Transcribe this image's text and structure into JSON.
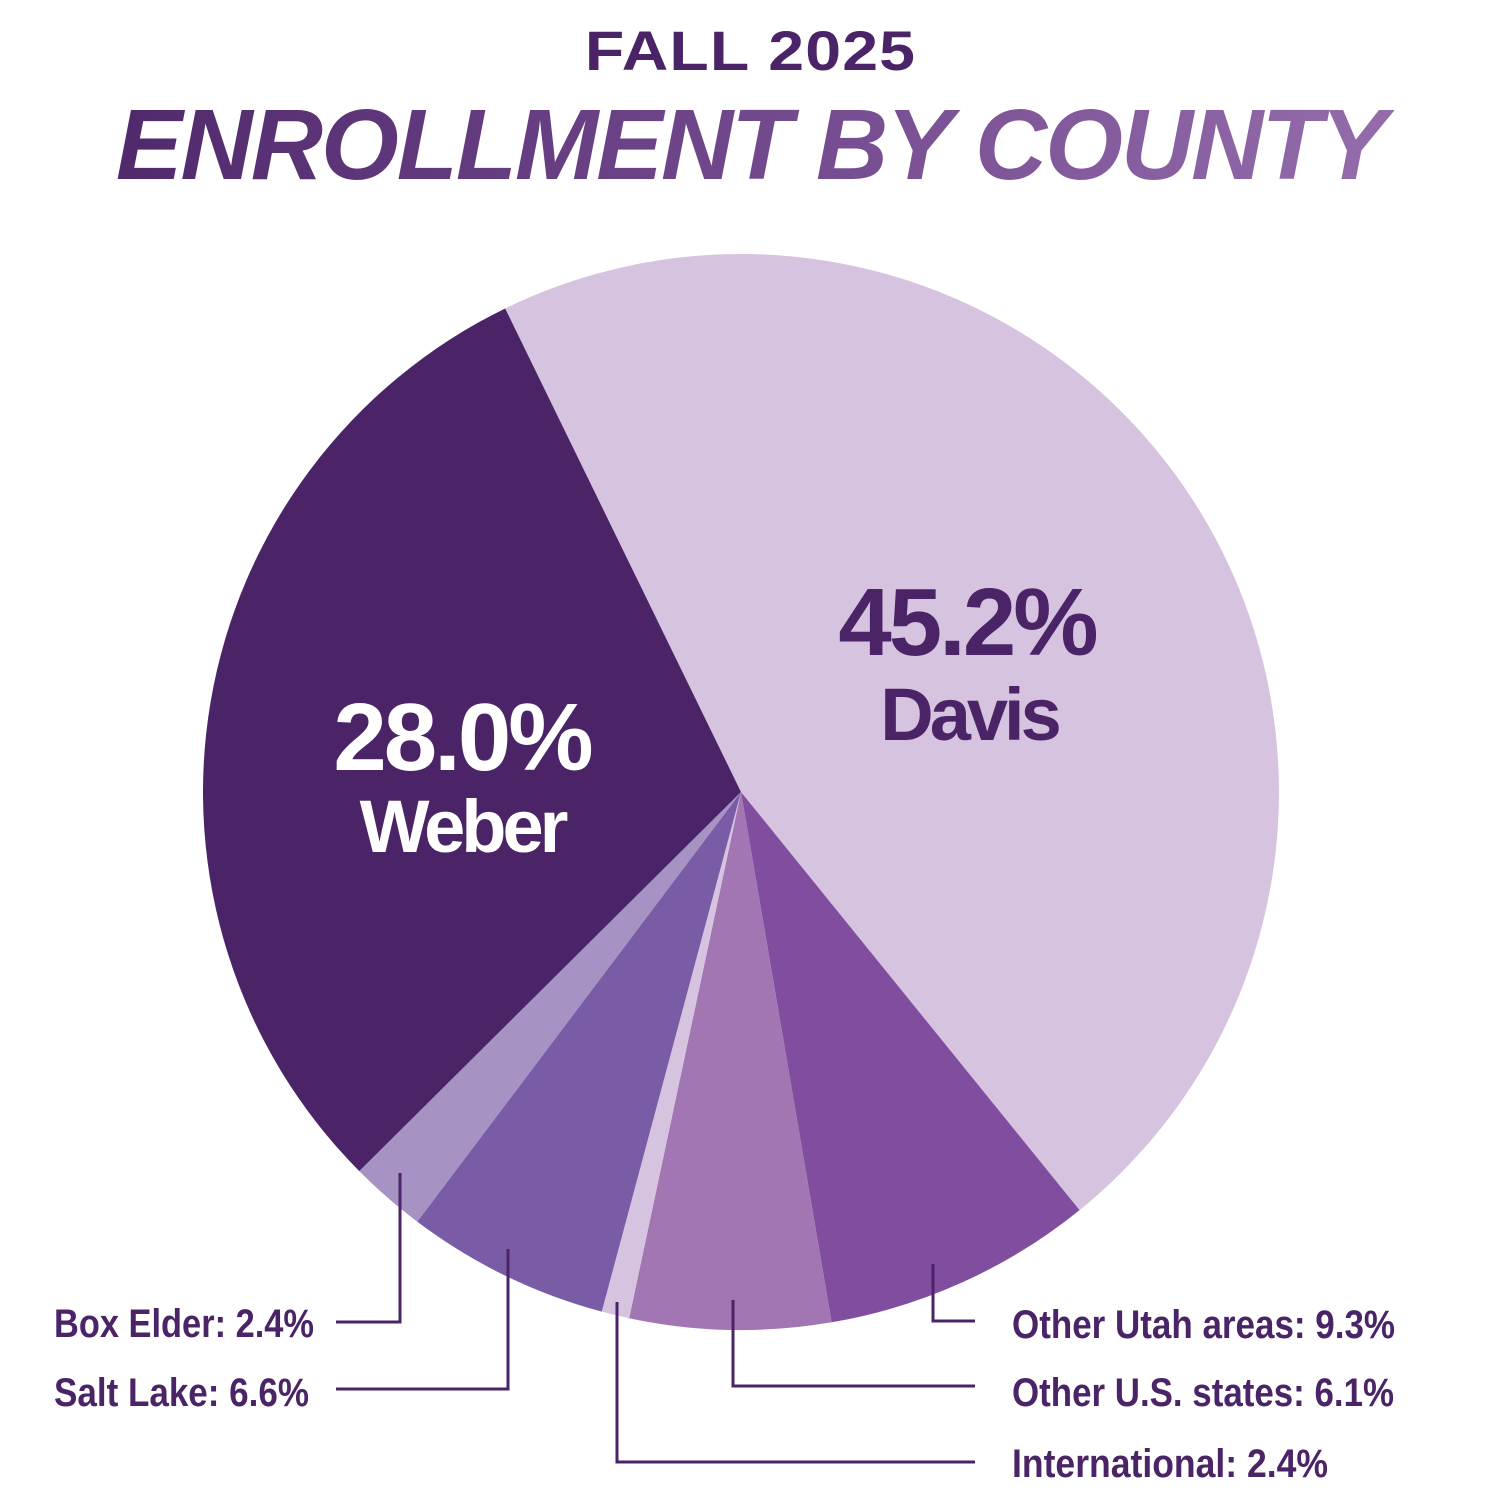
{
  "header": {
    "subtitle": "FALL 2025",
    "title": "ENROLLMENT BY COUNTY"
  },
  "colors": {
    "weber": "#4a2466",
    "davis": "#d6c3e0",
    "other_utah": "#814d9e",
    "other_us": "#a275b3",
    "international": "#d6c3e0",
    "salt_lake": "#795ca5",
    "box_elder": "#a693c3",
    "text_dark": "#4a2466",
    "text_light": "#ffffff"
  },
  "callouts": {
    "weber_pct": "28.0%",
    "weber_name": "Weber",
    "davis_pct": "45.2%",
    "davis_name": "Davis",
    "box_elder": "Box Elder: 2.4%",
    "salt_lake": "Salt Lake: 6.6%",
    "other_utah": "Other Utah areas: 9.3%",
    "other_us": "Other U.S. states: 6.1%",
    "international": "International: 2.4%"
  },
  "chart_data": {
    "type": "pie",
    "title": "ENROLLMENT BY COUNTY",
    "subtitle": "FALL 2025",
    "categories": [
      "Davis",
      "Other Utah areas",
      "Other U.S. states",
      "International",
      "Salt Lake",
      "Box Elder",
      "Weber"
    ],
    "values": [
      45.2,
      9.3,
      6.1,
      2.4,
      6.6,
      2.4,
      28.0
    ],
    "unit": "%",
    "legend": "none (callout labels)"
  }
}
